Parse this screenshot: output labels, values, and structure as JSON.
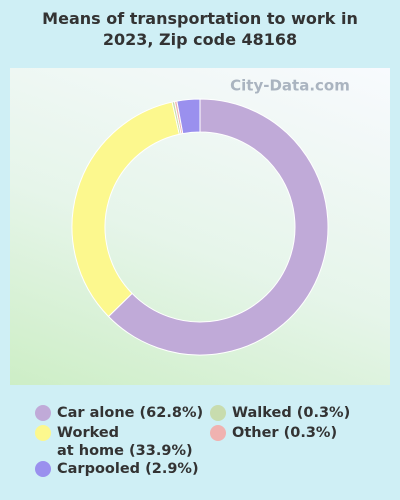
{
  "chart_data": {
    "type": "donut",
    "title": "Means of transportation to work in 2023, Zip code 48168",
    "watermark": "City-Data.com",
    "categories": [
      "Car alone (62.8%)",
      "Worked\nat home (33.9%)",
      "Walked (0.3%)",
      "Other (0.3%)",
      "Carpooled (2.9%)"
    ],
    "values": [
      62.8,
      33.9,
      0.3,
      0.3,
      2.9
    ],
    "colors": [
      "#c0aad8",
      "#fcf88e",
      "#c8dcae",
      "#f0b2b0",
      "#9a90ee"
    ]
  }
}
